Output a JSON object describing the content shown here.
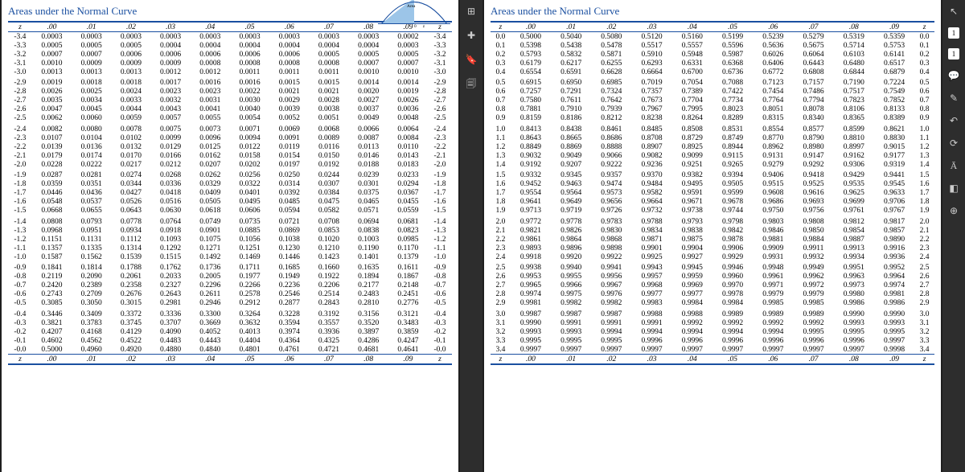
{
  "title": "Areas under the Normal Curve",
  "headers": [
    "z",
    ".00",
    ".01",
    ".02",
    ".03",
    ".04",
    ".05",
    ".06",
    ".07",
    ".08",
    ".09",
    "z"
  ],
  "curve": {
    "fill": "#9cc5e8",
    "line": "#1a4fa0",
    "area_label": "Area",
    "z_label": "z"
  },
  "leftRows": [
    [
      "-3.4",
      "0.0003",
      "0.0003",
      "0.0003",
      "0.0003",
      "0.0003",
      "0.0003",
      "0.0003",
      "0.0003",
      "0.0003",
      "0.0002",
      "-3.4"
    ],
    [
      "-3.3",
      "0.0005",
      "0.0005",
      "0.0005",
      "0.0004",
      "0.0004",
      "0.0004",
      "0.0004",
      "0.0004",
      "0.0004",
      "0.0003",
      "-3.3"
    ],
    [
      "-3.2",
      "0.0007",
      "0.0007",
      "0.0006",
      "0.0006",
      "0.0006",
      "0.0006",
      "0.0006",
      "0.0005",
      "0.0005",
      "0.0005",
      "-3.2"
    ],
    [
      "-3.1",
      "0.0010",
      "0.0009",
      "0.0009",
      "0.0009",
      "0.0008",
      "0.0008",
      "0.0008",
      "0.0008",
      "0.0007",
      "0.0007",
      "-3.1"
    ],
    [
      "-3.0",
      "0.0013",
      "0.0013",
      "0.0013",
      "0.0012",
      "0.0012",
      "0.0011",
      "0.0011",
      "0.0011",
      "0.0010",
      "0.0010",
      "-3.0"
    ],
    [
      "-2.9",
      "0.0019",
      "0.0018",
      "0.0018",
      "0.0017",
      "0.0016",
      "0.0016",
      "0.0015",
      "0.0015",
      "0.0014",
      "0.0014",
      "-2.9"
    ],
    [
      "-2.8",
      "0.0026",
      "0.0025",
      "0.0024",
      "0.0023",
      "0.0023",
      "0.0022",
      "0.0021",
      "0.0021",
      "0.0020",
      "0.0019",
      "-2.8"
    ],
    [
      "-2.7",
      "0.0035",
      "0.0034",
      "0.0033",
      "0.0032",
      "0.0031",
      "0.0030",
      "0.0029",
      "0.0028",
      "0.0027",
      "0.0026",
      "-2.7"
    ],
    [
      "-2.6",
      "0.0047",
      "0.0045",
      "0.0044",
      "0.0043",
      "0.0041",
      "0.0040",
      "0.0039",
      "0.0038",
      "0.0037",
      "0.0036",
      "-2.6"
    ],
    [
      "-2.5",
      "0.0062",
      "0.0060",
      "0.0059",
      "0.0057",
      "0.0055",
      "0.0054",
      "0.0052",
      "0.0051",
      "0.0049",
      "0.0048",
      "-2.5"
    ],
    [
      "-2.4",
      "0.0082",
      "0.0080",
      "0.0078",
      "0.0075",
      "0.0073",
      "0.0071",
      "0.0069",
      "0.0068",
      "0.0066",
      "0.0064",
      "-2.4"
    ],
    [
      "-2.3",
      "0.0107",
      "0.0104",
      "0.0102",
      "0.0099",
      "0.0096",
      "0.0094",
      "0.0091",
      "0.0089",
      "0.0087",
      "0.0084",
      "-2.3"
    ],
    [
      "-2.2",
      "0.0139",
      "0.0136",
      "0.0132",
      "0.0129",
      "0.0125",
      "0.0122",
      "0.0119",
      "0.0116",
      "0.0113",
      "0.0110",
      "-2.2"
    ],
    [
      "-2.1",
      "0.0179",
      "0.0174",
      "0.0170",
      "0.0166",
      "0.0162",
      "0.0158",
      "0.0154",
      "0.0150",
      "0.0146",
      "0.0143",
      "-2.1"
    ],
    [
      "-2.0",
      "0.0228",
      "0.0222",
      "0.0217",
      "0.0212",
      "0.0207",
      "0.0202",
      "0.0197",
      "0.0192",
      "0.0188",
      "0.0183",
      "-2.0"
    ],
    [
      "-1.9",
      "0.0287",
      "0.0281",
      "0.0274",
      "0.0268",
      "0.0262",
      "0.0256",
      "0.0250",
      "0.0244",
      "0.0239",
      "0.0233",
      "-1.9"
    ],
    [
      "-1.8",
      "0.0359",
      "0.0351",
      "0.0344",
      "0.0336",
      "0.0329",
      "0.0322",
      "0.0314",
      "0.0307",
      "0.0301",
      "0.0294",
      "-1.8"
    ],
    [
      "-1.7",
      "0.0446",
      "0.0436",
      "0.0427",
      "0.0418",
      "0.0409",
      "0.0401",
      "0.0392",
      "0.0384",
      "0.0375",
      "0.0367",
      "-1.7"
    ],
    [
      "-1.6",
      "0.0548",
      "0.0537",
      "0.0526",
      "0.0516",
      "0.0505",
      "0.0495",
      "0.0485",
      "0.0475",
      "0.0465",
      "0.0455",
      "-1.6"
    ],
    [
      "-1.5",
      "0.0668",
      "0.0655",
      "0.0643",
      "0.0630",
      "0.0618",
      "0.0606",
      "0.0594",
      "0.0582",
      "0.0571",
      "0.0559",
      "-1.5"
    ],
    [
      "-1.4",
      "0.0808",
      "0.0793",
      "0.0778",
      "0.0764",
      "0.0749",
      "0.0735",
      "0.0721",
      "0.0708",
      "0.0694",
      "0.0681",
      "-1.4"
    ],
    [
      "-1.3",
      "0.0968",
      "0.0951",
      "0.0934",
      "0.0918",
      "0.0901",
      "0.0885",
      "0.0869",
      "0.0853",
      "0.0838",
      "0.0823",
      "-1.3"
    ],
    [
      "-1.2",
      "0.1151",
      "0.1131",
      "0.1112",
      "0.1093",
      "0.1075",
      "0.1056",
      "0.1038",
      "0.1020",
      "0.1003",
      "0.0985",
      "-1.2"
    ],
    [
      "-1.1",
      "0.1357",
      "0.1335",
      "0.1314",
      "0.1292",
      "0.1271",
      "0.1251",
      "0.1230",
      "0.1210",
      "0.1190",
      "0.1170",
      "-1.1"
    ],
    [
      "-1.0",
      "0.1587",
      "0.1562",
      "0.1539",
      "0.1515",
      "0.1492",
      "0.1469",
      "0.1446",
      "0.1423",
      "0.1401",
      "0.1379",
      "-1.0"
    ],
    [
      "-0.9",
      "0.1841",
      "0.1814",
      "0.1788",
      "0.1762",
      "0.1736",
      "0.1711",
      "0.1685",
      "0.1660",
      "0.1635",
      "0.1611",
      "-0.9"
    ],
    [
      "-0.8",
      "0.2119",
      "0.2090",
      "0.2061",
      "0.2033",
      "0.2005",
      "0.1977",
      "0.1949",
      "0.1922",
      "0.1894",
      "0.1867",
      "-0.8"
    ],
    [
      "-0.7",
      "0.2420",
      "0.2389",
      "0.2358",
      "0.2327",
      "0.2296",
      "0.2266",
      "0.2236",
      "0.2206",
      "0.2177",
      "0.2148",
      "-0.7"
    ],
    [
      "-0.6",
      "0.2743",
      "0.2709",
      "0.2676",
      "0.2643",
      "0.2611",
      "0.2578",
      "0.2546",
      "0.2514",
      "0.2483",
      "0.2451",
      "-0.6"
    ],
    [
      "-0.5",
      "0.3085",
      "0.3050",
      "0.3015",
      "0.2981",
      "0.2946",
      "0.2912",
      "0.2877",
      "0.2843",
      "0.2810",
      "0.2776",
      "-0.5"
    ],
    [
      "-0.4",
      "0.3446",
      "0.3409",
      "0.3372",
      "0.3336",
      "0.3300",
      "0.3264",
      "0.3228",
      "0.3192",
      "0.3156",
      "0.3121",
      "-0.4"
    ],
    [
      "-0.3",
      "0.3821",
      "0.3783",
      "0.3745",
      "0.3707",
      "0.3669",
      "0.3632",
      "0.3594",
      "0.3557",
      "0.3520",
      "0.3483",
      "-0.3"
    ],
    [
      "-0.2",
      "0.4207",
      "0.4168",
      "0.4129",
      "0.4090",
      "0.4052",
      "0.4013",
      "0.3974",
      "0.3936",
      "0.3897",
      "0.3859",
      "-0.2"
    ],
    [
      "-0.1",
      "0.4602",
      "0.4562",
      "0.4522",
      "0.4483",
      "0.4443",
      "0.4404",
      "0.4364",
      "0.4325",
      "0.4286",
      "0.4247",
      "-0.1"
    ],
    [
      "-0.0",
      "0.5000",
      "0.4960",
      "0.4920",
      "0.4880",
      "0.4840",
      "0.4801",
      "0.4761",
      "0.4721",
      "0.4681",
      "0.4641",
      "-0.0"
    ]
  ],
  "rightRows": [
    [
      "0.0",
      "0.5000",
      "0.5040",
      "0.5080",
      "0.5120",
      "0.5160",
      "0.5199",
      "0.5239",
      "0.5279",
      "0.5319",
      "0.5359",
      "0.0"
    ],
    [
      "0.1",
      "0.5398",
      "0.5438",
      "0.5478",
      "0.5517",
      "0.5557",
      "0.5596",
      "0.5636",
      "0.5675",
      "0.5714",
      "0.5753",
      "0.1"
    ],
    [
      "0.2",
      "0.5793",
      "0.5832",
      "0.5871",
      "0.5910",
      "0.5948",
      "0.5987",
      "0.6026",
      "0.6064",
      "0.6103",
      "0.6141",
      "0.2"
    ],
    [
      "0.3",
      "0.6179",
      "0.6217",
      "0.6255",
      "0.6293",
      "0.6331",
      "0.6368",
      "0.6406",
      "0.6443",
      "0.6480",
      "0.6517",
      "0.3"
    ],
    [
      "0.4",
      "0.6554",
      "0.6591",
      "0.6628",
      "0.6664",
      "0.6700",
      "0.6736",
      "0.6772",
      "0.6808",
      "0.6844",
      "0.6879",
      "0.4"
    ],
    [
      "0.5",
      "0.6915",
      "0.6950",
      "0.6985",
      "0.7019",
      "0.7054",
      "0.7088",
      "0.7123",
      "0.7157",
      "0.7190",
      "0.7224",
      "0.5"
    ],
    [
      "0.6",
      "0.7257",
      "0.7291",
      "0.7324",
      "0.7357",
      "0.7389",
      "0.7422",
      "0.7454",
      "0.7486",
      "0.7517",
      "0.7549",
      "0.6"
    ],
    [
      "0.7",
      "0.7580",
      "0.7611",
      "0.7642",
      "0.7673",
      "0.7704",
      "0.7734",
      "0.7764",
      "0.7794",
      "0.7823",
      "0.7852",
      "0.7"
    ],
    [
      "0.8",
      "0.7881",
      "0.7910",
      "0.7939",
      "0.7967",
      "0.7995",
      "0.8023",
      "0.8051",
      "0.8078",
      "0.8106",
      "0.8133",
      "0.8"
    ],
    [
      "0.9",
      "0.8159",
      "0.8186",
      "0.8212",
      "0.8238",
      "0.8264",
      "0.8289",
      "0.8315",
      "0.8340",
      "0.8365",
      "0.8389",
      "0.9"
    ],
    [
      "1.0",
      "0.8413",
      "0.8438",
      "0.8461",
      "0.8485",
      "0.8508",
      "0.8531",
      "0.8554",
      "0.8577",
      "0.8599",
      "0.8621",
      "1.0"
    ],
    [
      "1.1",
      "0.8643",
      "0.8665",
      "0.8686",
      "0.8708",
      "0.8729",
      "0.8749",
      "0.8770",
      "0.8790",
      "0.8810",
      "0.8830",
      "1.1"
    ],
    [
      "1.2",
      "0.8849",
      "0.8869",
      "0.8888",
      "0.8907",
      "0.8925",
      "0.8944",
      "0.8962",
      "0.8980",
      "0.8997",
      "0.9015",
      "1.2"
    ],
    [
      "1.3",
      "0.9032",
      "0.9049",
      "0.9066",
      "0.9082",
      "0.9099",
      "0.9115",
      "0.9131",
      "0.9147",
      "0.9162",
      "0.9177",
      "1.3"
    ],
    [
      "1.4",
      "0.9192",
      "0.9207",
      "0.9222",
      "0.9236",
      "0.9251",
      "0.9265",
      "0.9279",
      "0.9292",
      "0.9306",
      "0.9319",
      "1.4"
    ],
    [
      "1.5",
      "0.9332",
      "0.9345",
      "0.9357",
      "0.9370",
      "0.9382",
      "0.9394",
      "0.9406",
      "0.9418",
      "0.9429",
      "0.9441",
      "1.5"
    ],
    [
      "1.6",
      "0.9452",
      "0.9463",
      "0.9474",
      "0.9484",
      "0.9495",
      "0.9505",
      "0.9515",
      "0.9525",
      "0.9535",
      "0.9545",
      "1.6"
    ],
    [
      "1.7",
      "0.9554",
      "0.9564",
      "0.9573",
      "0.9582",
      "0.9591",
      "0.9599",
      "0.9608",
      "0.9616",
      "0.9625",
      "0.9633",
      "1.7"
    ],
    [
      "1.8",
      "0.9641",
      "0.9649",
      "0.9656",
      "0.9664",
      "0.9671",
      "0.9678",
      "0.9686",
      "0.9693",
      "0.9699",
      "0.9706",
      "1.8"
    ],
    [
      "1.9",
      "0.9713",
      "0.9719",
      "0.9726",
      "0.9732",
      "0.9738",
      "0.9744",
      "0.9750",
      "0.9756",
      "0.9761",
      "0.9767",
      "1.9"
    ],
    [
      "2.0",
      "0.9772",
      "0.9778",
      "0.9783",
      "0.9788",
      "0.9793",
      "0.9798",
      "0.9803",
      "0.9808",
      "0.9812",
      "0.9817",
      "2.0"
    ],
    [
      "2.1",
      "0.9821",
      "0.9826",
      "0.9830",
      "0.9834",
      "0.9838",
      "0.9842",
      "0.9846",
      "0.9850",
      "0.9854",
      "0.9857",
      "2.1"
    ],
    [
      "2.2",
      "0.9861",
      "0.9864",
      "0.9868",
      "0.9871",
      "0.9875",
      "0.9878",
      "0.9881",
      "0.9884",
      "0.9887",
      "0.9890",
      "2.2"
    ],
    [
      "2.3",
      "0.9893",
      "0.9896",
      "0.9898",
      "0.9901",
      "0.9904",
      "0.9906",
      "0.9909",
      "0.9911",
      "0.9913",
      "0.9916",
      "2.3"
    ],
    [
      "2.4",
      "0.9918",
      "0.9920",
      "0.9922",
      "0.9925",
      "0.9927",
      "0.9929",
      "0.9931",
      "0.9932",
      "0.9934",
      "0.9936",
      "2.4"
    ],
    [
      "2.5",
      "0.9938",
      "0.9940",
      "0.9941",
      "0.9943",
      "0.9945",
      "0.9946",
      "0.9948",
      "0.9949",
      "0.9951",
      "0.9952",
      "2.5"
    ],
    [
      "2.6",
      "0.9953",
      "0.9955",
      "0.9956",
      "0.9957",
      "0.9959",
      "0.9960",
      "0.9961",
      "0.9962",
      "0.9963",
      "0.9964",
      "2.6"
    ],
    [
      "2.7",
      "0.9965",
      "0.9966",
      "0.9967",
      "0.9968",
      "0.9969",
      "0.9970",
      "0.9971",
      "0.9972",
      "0.9973",
      "0.9974",
      "2.7"
    ],
    [
      "2.8",
      "0.9974",
      "0.9975",
      "0.9976",
      "0.9977",
      "0.9977",
      "0.9978",
      "0.9979",
      "0.9979",
      "0.9980",
      "0.9981",
      "2.8"
    ],
    [
      "2.9",
      "0.9981",
      "0.9982",
      "0.9982",
      "0.9983",
      "0.9984",
      "0.9984",
      "0.9985",
      "0.9985",
      "0.9986",
      "0.9986",
      "2.9"
    ],
    [
      "3.0",
      "0.9987",
      "0.9987",
      "0.9987",
      "0.9988",
      "0.9988",
      "0.9989",
      "0.9989",
      "0.9989",
      "0.9990",
      "0.9990",
      "3.0"
    ],
    [
      "3.1",
      "0.9990",
      "0.9991",
      "0.9991",
      "0.9991",
      "0.9992",
      "0.9992",
      "0.9992",
      "0.9992",
      "0.9993",
      "0.9993",
      "3.1"
    ],
    [
      "3.2",
      "0.9993",
      "0.9993",
      "0.9994",
      "0.9994",
      "0.9994",
      "0.9994",
      "0.9994",
      "0.9995",
      "0.9995",
      "0.9995",
      "3.2"
    ],
    [
      "3.3",
      "0.9995",
      "0.9995",
      "0.9995",
      "0.9996",
      "0.9996",
      "0.9996",
      "0.9996",
      "0.9996",
      "0.9996",
      "0.9997",
      "3.3"
    ],
    [
      "3.4",
      "0.9997",
      "0.9997",
      "0.9997",
      "0.9997",
      "0.9997",
      "0.9997",
      "0.9997",
      "0.9997",
      "0.9997",
      "0.9998",
      "3.4"
    ]
  ],
  "leftBreaks": [
    5,
    10,
    15,
    20,
    25,
    30
  ],
  "rightBreaks": [
    5,
    10,
    15,
    20,
    25,
    30
  ],
  "midIcons": [
    "⊞",
    "✚",
    "📑",
    "🗐"
  ],
  "rightIcons": {
    "top": [
      "↖",
      "1",
      "1",
      "💬",
      "✎",
      "↻",
      "⟳",
      "凮",
      "▦",
      "⊙"
    ],
    "bottom": []
  }
}
